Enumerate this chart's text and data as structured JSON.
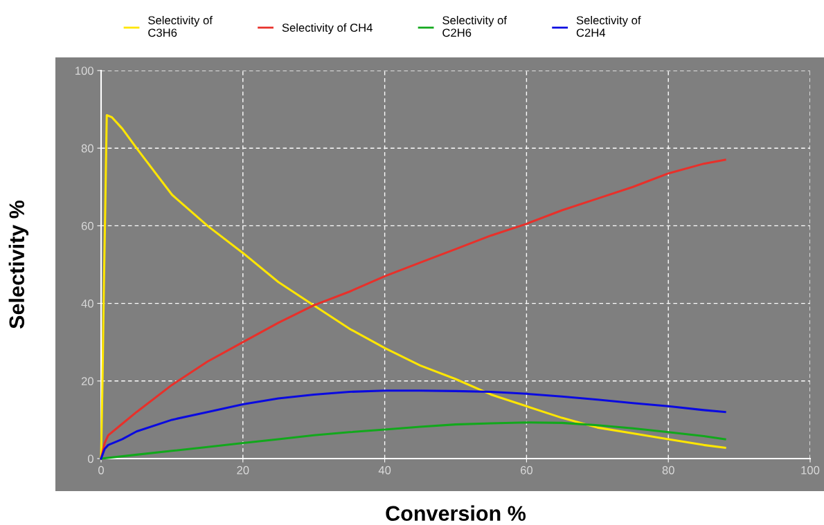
{
  "chart_data": {
    "type": "line",
    "xlabel": "Conversion %",
    "ylabel": "Selectivity %",
    "xlim": [
      0,
      100
    ],
    "ylim": [
      0,
      100
    ],
    "xticks": [
      0,
      20,
      40,
      60,
      80,
      100
    ],
    "yticks": [
      0,
      20,
      40,
      60,
      80,
      100
    ],
    "grid": true,
    "legend": "top",
    "marker": "none",
    "line_style": "solid",
    "series": [
      {
        "name": "Selectivity of\nC3H6",
        "color": "#ffe600",
        "x": [
          0,
          0.2,
          0.4,
          0.6,
          0.8,
          1.5,
          3,
          5,
          10,
          15,
          20,
          25,
          30,
          35,
          40,
          45,
          50,
          55,
          60,
          65,
          70,
          75,
          80,
          85,
          88
        ],
        "values": [
          0,
          20,
          45,
          66,
          88.5,
          88,
          85,
          80,
          68,
          60,
          53,
          45.5,
          39.5,
          33.5,
          28.5,
          24,
          20.5,
          16.5,
          13.5,
          10.5,
          8,
          6.5,
          5,
          3.5,
          2.8
        ]
      },
      {
        "name": "Selectivity of CH4",
        "color": "#e8302a",
        "x": [
          0,
          0.5,
          1,
          3,
          5,
          10,
          15,
          20,
          25,
          30,
          35,
          40,
          45,
          50,
          55,
          60,
          65,
          70,
          75,
          80,
          85,
          88
        ],
        "values": [
          0,
          4,
          6,
          9,
          12,
          19,
          25,
          30,
          35,
          39.5,
          43,
          47,
          50.5,
          54,
          57.5,
          60.5,
          64,
          67,
          70,
          73.5,
          76,
          77
        ]
      },
      {
        "name": "Selectivity of\nC2H6",
        "color": "#12a81c",
        "x": [
          0,
          5,
          10,
          15,
          20,
          25,
          30,
          35,
          40,
          45,
          50,
          55,
          60,
          65,
          70,
          75,
          80,
          85,
          88
        ],
        "values": [
          0,
          1,
          2,
          3,
          4,
          5,
          6,
          6.8,
          7.5,
          8.2,
          8.8,
          9.1,
          9.3,
          9.2,
          8.6,
          7.8,
          6.8,
          5.8,
          5
        ]
      },
      {
        "name": "Selectivity of\nC2H4",
        "color": "#0a0ae0",
        "x": [
          0,
          0.5,
          1,
          3,
          5,
          10,
          15,
          20,
          25,
          30,
          35,
          40,
          45,
          50,
          55,
          60,
          65,
          70,
          75,
          80,
          85,
          88
        ],
        "values": [
          0,
          2.5,
          3.5,
          5,
          7,
          10,
          12,
          14,
          15.5,
          16.5,
          17.2,
          17.5,
          17.5,
          17.4,
          17.2,
          16.7,
          16,
          15.2,
          14.3,
          13.5,
          12.5,
          12
        ]
      }
    ]
  }
}
